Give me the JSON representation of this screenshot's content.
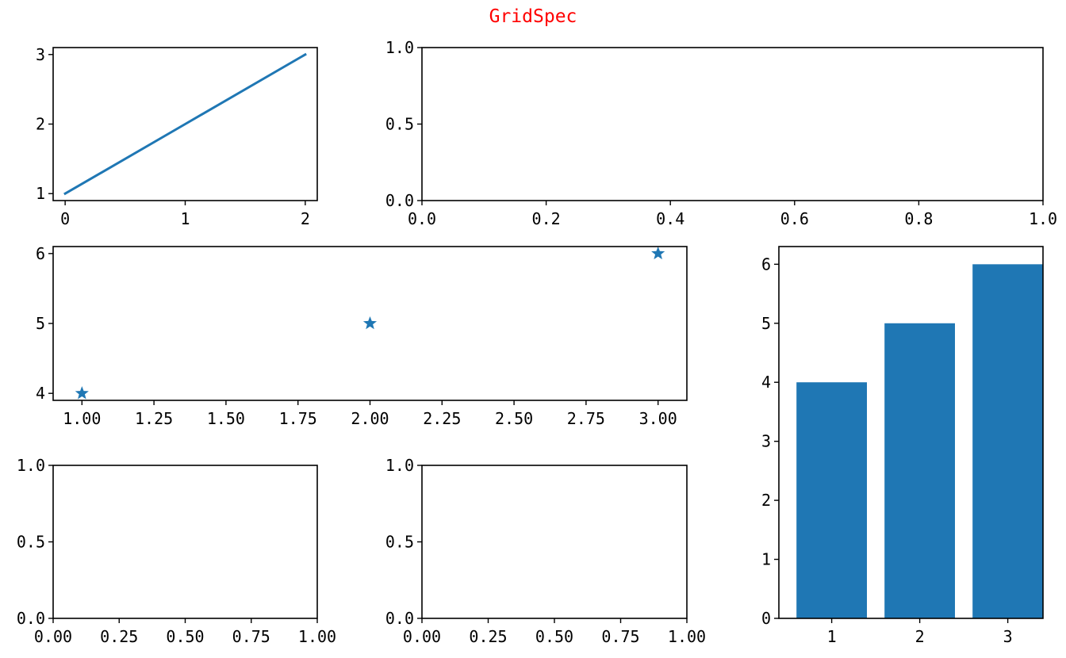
{
  "figure": {
    "title": "GridSpec",
    "title_color": "#ff0000",
    "series_color": "#1f77b4"
  },
  "chart_data": [
    {
      "id": "ax1",
      "type": "line",
      "x": [
        0,
        1,
        2
      ],
      "y": [
        1,
        2,
        3
      ],
      "xlim": [
        -0.1,
        2.1
      ],
      "ylim": [
        0.9,
        3.1
      ],
      "xticks": [
        0,
        1,
        2
      ],
      "xtick_labels": [
        "0",
        "1",
        "2"
      ],
      "yticks": [
        1,
        2,
        3
      ],
      "ytick_labels": [
        "1",
        "2",
        "3"
      ],
      "grid": false
    },
    {
      "id": "ax2",
      "type": "line",
      "x": [],
      "y": [],
      "xlim": [
        0,
        1
      ],
      "ylim": [
        0,
        1
      ],
      "xticks": [
        0,
        0.2,
        0.4,
        0.6,
        0.8,
        1.0
      ],
      "xtick_labels": [
        "0.0",
        "0.2",
        "0.4",
        "0.6",
        "0.8",
        "1.0"
      ],
      "yticks": [
        0,
        0.5,
        1.0
      ],
      "ytick_labels": [
        "0.0",
        "0.5",
        "1.0"
      ],
      "grid": false
    },
    {
      "id": "ax3",
      "type": "scatter",
      "marker": "star",
      "x": [
        1,
        2,
        3
      ],
      "y": [
        4,
        5,
        6
      ],
      "xlim": [
        0.9,
        3.1
      ],
      "ylim": [
        3.9,
        6.1
      ],
      "xticks": [
        1.0,
        1.25,
        1.5,
        1.75,
        2.0,
        2.25,
        2.5,
        2.75,
        3.0
      ],
      "xtick_labels": [
        "1.00",
        "1.25",
        "1.50",
        "1.75",
        "2.00",
        "2.25",
        "2.50",
        "2.75",
        "3.00"
      ],
      "yticks": [
        4,
        5,
        6
      ],
      "ytick_labels": [
        "4",
        "5",
        "6"
      ],
      "grid": false
    },
    {
      "id": "ax4",
      "type": "bar",
      "categories": [
        1,
        2,
        3
      ],
      "values": [
        4,
        5,
        6
      ],
      "bar_width": 0.8,
      "xlim": [
        0.4,
        3.4
      ],
      "ylim": [
        0,
        6.3
      ],
      "xticks": [
        1,
        2,
        3
      ],
      "xtick_labels": [
        "1",
        "2",
        "3"
      ],
      "yticks": [
        0,
        1,
        2,
        3,
        4,
        5,
        6
      ],
      "ytick_labels": [
        "0",
        "1",
        "2",
        "3",
        "4",
        "5",
        "6"
      ],
      "grid": false
    },
    {
      "id": "ax5",
      "type": "line",
      "x": [],
      "y": [],
      "xlim": [
        0,
        1
      ],
      "ylim": [
        0,
        1
      ],
      "xticks": [
        0,
        0.25,
        0.5,
        0.75,
        1.0
      ],
      "xtick_labels": [
        "0.00",
        "0.25",
        "0.50",
        "0.75",
        "1.00"
      ],
      "yticks": [
        0,
        0.5,
        1.0
      ],
      "ytick_labels": [
        "0.0",
        "0.5",
        "1.0"
      ],
      "grid": false
    },
    {
      "id": "ax6",
      "type": "line",
      "x": [],
      "y": [],
      "xlim": [
        0,
        1
      ],
      "ylim": [
        0,
        1
      ],
      "xticks": [
        0,
        0.25,
        0.5,
        0.75,
        1.0
      ],
      "xtick_labels": [
        "0.00",
        "0.25",
        "0.50",
        "0.75",
        "1.00"
      ],
      "yticks": [
        0,
        0.5,
        1.0
      ],
      "ytick_labels": [
        "0.0",
        "0.5",
        "1.0"
      ],
      "grid": false
    }
  ]
}
